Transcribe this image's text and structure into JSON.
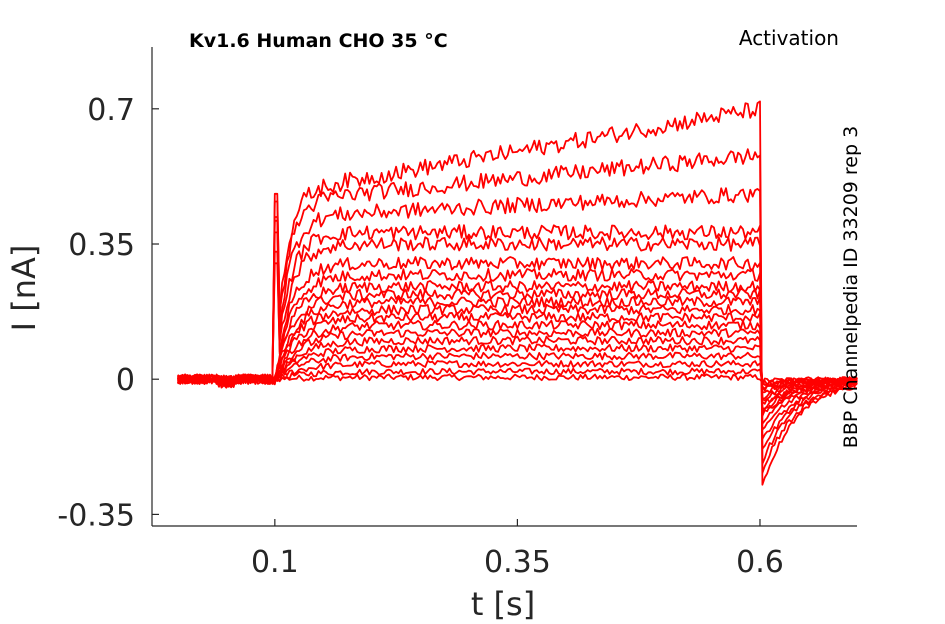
{
  "chart_data": {
    "type": "line",
    "title": "Kv1.6  Human  CHO  35 °C",
    "protocol_label": "Activation",
    "side_label": "BBP Channelpedia ID 33209 rep 3",
    "xlabel": "t [s]",
    "ylabel": "I [nA]",
    "xlim": [
      -0.0266,
      0.7
    ],
    "ylim": [
      -0.38,
      0.86
    ],
    "xticks": [
      0.1,
      0.35,
      0.6
    ],
    "xtick_labels": [
      "0.1",
      "0.35",
      "0.6"
    ],
    "yticks": [
      -0.35,
      0,
      0.35,
      0.7
    ],
    "ytick_labels": [
      "-0.35",
      "0",
      "0.35",
      "0.7"
    ],
    "grid": false,
    "line_color": "#ff0000",
    "sweeps": [
      {
        "ss": 0.005,
        "tail": -0.005
      },
      {
        "ss": 0.02,
        "tail": -0.01
      },
      {
        "ss": 0.04,
        "tail": -0.015
      },
      {
        "ss": 0.06,
        "tail": -0.02
      },
      {
        "ss": 0.08,
        "tail": -0.025
      },
      {
        "ss": 0.1,
        "tail": -0.03
      },
      {
        "ss": 0.12,
        "tail": -0.04
      },
      {
        "ss": 0.14,
        "tail": -0.05
      },
      {
        "ss": 0.16,
        "tail": -0.06
      },
      {
        "ss": 0.18,
        "tail": -0.07
      },
      {
        "ss": 0.2,
        "tail": -0.08
      },
      {
        "ss": 0.22,
        "tail": -0.09
      },
      {
        "ss": 0.24,
        "tail": -0.1
      },
      {
        "ss": 0.27,
        "tail": -0.12
      },
      {
        "ss": 0.3,
        "tail": -0.14
      },
      {
        "ss": 0.35,
        "tail": -0.17
      },
      {
        "ss": 0.38,
        "tail": -0.2
      },
      {
        "ss": 0.42,
        "tail": -0.23,
        "ramp": 0.06
      },
      {
        "ss": 0.46,
        "tail": -0.26,
        "ramp": 0.12
      },
      {
        "ss": 0.48,
        "tail": -0.3,
        "ramp": 0.22
      }
    ]
  }
}
